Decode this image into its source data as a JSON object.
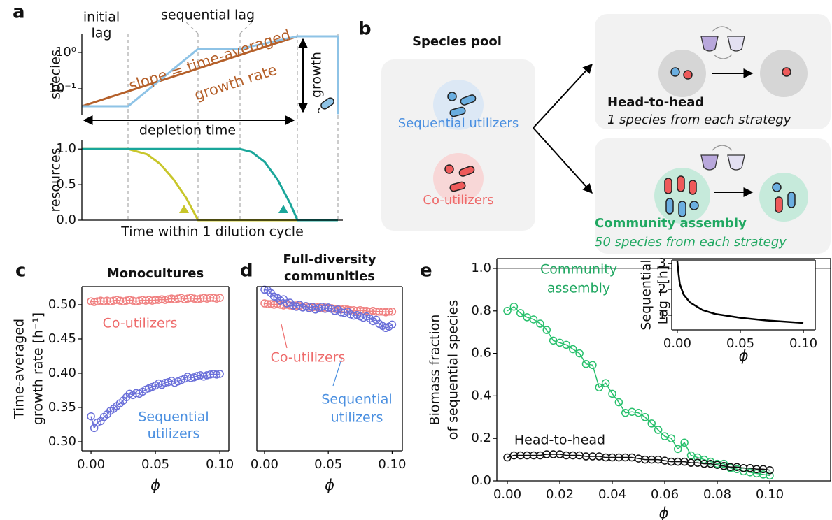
{
  "panel_labels": [
    "a",
    "b",
    "c",
    "d",
    "e"
  ],
  "diagram": {
    "pool_title": "Species pool",
    "pool": [
      "Sequential utilizers",
      "Co-utilizers"
    ],
    "head": {
      "title": "Head-to-head",
      "subtitle": "1 species from each strategy"
    },
    "community": {
      "title": "Community assembly",
      "subtitle": "50 species from each strategy"
    }
  },
  "chart_data": [
    {
      "type": "line",
      "ylabel": "species",
      "ylog": true,
      "xlim": [
        0,
        100
      ],
      "ylim": [
        0.0186,
        3.3
      ],
      "yticks": [
        {
          "value": 1,
          "label": "10⁰"
        },
        {
          "value": 0.1,
          "label": "10⁻¹"
        }
      ],
      "series": [
        {
          "color": "#b5602a",
          "x": [
            0,
            82.6
          ],
          "values": [
            0.033,
            2.77
          ]
        },
        {
          "color": "#8ec3e6",
          "x": [
            0,
            17.7,
            44.5,
            60.6,
            82.6,
            98.1,
            98.1
          ],
          "values": [
            0.033,
            0.033,
            1.25,
            1.25,
            2.77,
            2.77,
            0.02
          ]
        }
      ],
      "annotations": [
        {
          "text": [
            "initial",
            "lag"
          ]
        },
        {
          "text": "sequential lag"
        },
        {
          "text": [
            "slope = time-averaged",
            "growth rate"
          ],
          "color": "#b5602a"
        },
        {
          "text": "growth"
        },
        {
          "text": "depletion time"
        }
      ]
    },
    {
      "type": "line",
      "ylabel": "resources",
      "xlabel": "Time within 1 dilution cycle",
      "xlim": [
        0,
        100
      ],
      "ylim": [
        0,
        1.13
      ],
      "yticks": [
        {
          "value": 0,
          "label": "0.0"
        },
        {
          "value": 0.5,
          "label": "0.5"
        },
        {
          "value": 1,
          "label": "1.0"
        }
      ],
      "series": [
        {
          "color": "#c8c62a",
          "x": [
            0,
            17.7,
            25,
            30,
            35,
            40,
            44.5,
            98.1
          ],
          "values": [
            1,
            1,
            0.926,
            0.79,
            0.58,
            0.31,
            0,
            0
          ]
        },
        {
          "color": "#1aa69a",
          "x": [
            0,
            60.6,
            65,
            70,
            75,
            80,
            82.6,
            98.1
          ],
          "values": [
            1,
            1,
            0.96,
            0.82,
            0.57,
            0.22,
            0,
            0
          ]
        }
      ]
    },
    {
      "type": "line",
      "title": "Monocultures",
      "ylabel": [
        "Time-averaged",
        "growth rate [h⁻¹]"
      ],
      "xlabel": "ϕ",
      "marker": "circle",
      "xlim": [
        -0.0071,
        0.107
      ],
      "ylim": [
        0.2867,
        0.5265
      ],
      "xticks": [
        {
          "value": 0,
          "label": "0.00"
        },
        {
          "value": 0.05,
          "label": "0.05"
        },
        {
          "value": 0.1,
          "label": "0.10"
        }
      ],
      "yticks": [
        {
          "value": 0.3,
          "label": "0.30"
        },
        0.35,
        {
          "value": 0.4,
          "label": "0.40"
        },
        0.45,
        {
          "value": 0.5,
          "label": "0.50"
        }
      ],
      "x": [
        0,
        0.0025,
        0.005,
        0.0075,
        0.01,
        0.0125,
        0.015,
        0.0175,
        0.02,
        0.0225,
        0.025,
        0.0275,
        0.03,
        0.0325,
        0.035,
        0.0375,
        0.04,
        0.0425,
        0.045,
        0.0475,
        0.05,
        0.0525,
        0.055,
        0.0575,
        0.06,
        0.0625,
        0.065,
        0.0675,
        0.07,
        0.0725,
        0.075,
        0.0775,
        0.08,
        0.0825,
        0.085,
        0.0875,
        0.09,
        0.0925,
        0.095,
        0.0975,
        0.1
      ],
      "series": [
        {
          "color": "#f08080",
          "values": [
            0.505,
            0.504,
            0.505,
            0.506,
            0.505,
            0.506,
            0.505,
            0.506,
            0.507,
            0.506,
            0.505,
            0.506,
            0.507,
            0.506,
            0.505,
            0.506,
            0.507,
            0.506,
            0.507,
            0.506,
            0.507,
            0.507,
            0.508,
            0.507,
            0.508,
            0.509,
            0.508,
            0.509,
            0.51,
            0.508,
            0.509,
            0.51,
            0.509,
            0.508,
            0.509,
            0.51,
            0.509,
            0.51,
            0.51,
            0.509,
            0.51
          ]
        },
        {
          "color": "#6a6fd9",
          "values": [
            0.337,
            0.32,
            0.328,
            0.33,
            0.336,
            0.34,
            0.345,
            0.348,
            0.352,
            0.356,
            0.36,
            0.365,
            0.37,
            0.368,
            0.371,
            0.37,
            0.373,
            0.376,
            0.378,
            0.38,
            0.382,
            0.385,
            0.383,
            0.386,
            0.387,
            0.389,
            0.386,
            0.388,
            0.39,
            0.392,
            0.395,
            0.393,
            0.394,
            0.396,
            0.397,
            0.395,
            0.397,
            0.398,
            0.399,
            0.398,
            0.399
          ]
        }
      ],
      "annotations": [
        {
          "text": "Co-utilizers",
          "color": "#ee6b6b"
        },
        {
          "text": [
            "Sequential",
            "utilizers"
          ],
          "color": "#4a8fe0"
        }
      ]
    },
    {
      "type": "line",
      "title": [
        "Full-diversity",
        "communities"
      ],
      "xlabel": "ϕ",
      "marker": "circle",
      "xlim": [
        -0.006,
        0.108
      ],
      "ylim": [
        0.2867,
        0.5265
      ],
      "xticks": [
        {
          "value": 0,
          "label": "0.00"
        },
        {
          "value": 0.05,
          "label": "0.05"
        },
        {
          "value": 0.1,
          "label": "0.10"
        }
      ],
      "x": [
        0,
        0.0025,
        0.005,
        0.0075,
        0.01,
        0.0125,
        0.015,
        0.0175,
        0.02,
        0.0225,
        0.025,
        0.0275,
        0.03,
        0.0325,
        0.035,
        0.0375,
        0.04,
        0.0425,
        0.045,
        0.0475,
        0.05,
        0.0525,
        0.055,
        0.0575,
        0.06,
        0.0625,
        0.065,
        0.0675,
        0.07,
        0.0725,
        0.075,
        0.0775,
        0.08,
        0.0825,
        0.085,
        0.0875,
        0.09,
        0.0925,
        0.095,
        0.0975,
        0.1
      ],
      "series": [
        {
          "color": "#f08080",
          "values": [
            0.502,
            0.501,
            0.501,
            0.5,
            0.501,
            0.5,
            0.499,
            0.5,
            0.499,
            0.498,
            0.499,
            0.498,
            0.497,
            0.498,
            0.497,
            0.496,
            0.497,
            0.496,
            0.495,
            0.496,
            0.495,
            0.495,
            0.494,
            0.494,
            0.493,
            0.494,
            0.493,
            0.492,
            0.492,
            0.491,
            0.492,
            0.491,
            0.491,
            0.49,
            0.491,
            0.49,
            0.49,
            0.49,
            0.489,
            0.49,
            0.49
          ]
        },
        {
          "color": "#6a6fd9",
          "values": [
            0.522,
            0.521,
            0.517,
            0.512,
            0.51,
            0.506,
            0.508,
            0.502,
            0.503,
            0.499,
            0.497,
            0.5,
            0.496,
            0.498,
            0.495,
            0.497,
            0.493,
            0.495,
            0.497,
            0.494,
            0.496,
            0.494,
            0.491,
            0.493,
            0.489,
            0.488,
            0.49,
            0.486,
            0.484,
            0.485,
            0.483,
            0.481,
            0.483,
            0.48,
            0.476,
            0.478,
            0.472,
            0.469,
            0.466,
            0.468,
            0.471
          ]
        }
      ],
      "annotations": [
        {
          "text": "Co-utilizers",
          "color": "#ee6b6b"
        },
        {
          "text": [
            "Sequential",
            "utilizers"
          ],
          "color": "#4a8fe0"
        }
      ]
    },
    {
      "type": "line",
      "ylabel": [
        "Biomass fraction",
        "of sequential species"
      ],
      "xlabel": "ϕ",
      "marker": "circle",
      "hline": 1,
      "xlim": [
        -0.004,
        0.1232
      ],
      "ylim": [
        0,
        1.046
      ],
      "xticks": [
        {
          "value": 0,
          "label": "0.00"
        },
        {
          "value": 0.02,
          "label": "0.02"
        },
        {
          "value": 0.04,
          "label": "0.04"
        },
        {
          "value": 0.06,
          "label": "0.06"
        },
        {
          "value": 0.08,
          "label": "0.08"
        },
        {
          "value": 0.1,
          "label": "0.10"
        }
      ],
      "yticks": [
        {
          "value": 0,
          "label": "0.0"
        },
        0.2,
        0.4,
        0.6,
        0.8,
        {
          "value": 1,
          "label": "1.0"
        }
      ],
      "x": [
        0,
        0.0025,
        0.005,
        0.0075,
        0.01,
        0.0125,
        0.015,
        0.0175,
        0.02,
        0.0225,
        0.025,
        0.0275,
        0.03,
        0.0325,
        0.035,
        0.0375,
        0.04,
        0.0425,
        0.045,
        0.0475,
        0.05,
        0.0525,
        0.055,
        0.0575,
        0.06,
        0.0625,
        0.065,
        0.0675,
        0.07,
        0.0725,
        0.075,
        0.0775,
        0.08,
        0.0825,
        0.085,
        0.0875,
        0.09,
        0.0925,
        0.095,
        0.0975,
        0.1
      ],
      "series": [
        {
          "color": "#29c06d",
          "values": [
            0.8,
            0.82,
            0.79,
            0.77,
            0.76,
            0.74,
            0.71,
            0.66,
            0.65,
            0.64,
            0.62,
            0.6,
            0.55,
            0.545,
            0.44,
            0.46,
            0.41,
            0.37,
            0.32,
            0.325,
            0.32,
            0.3,
            0.27,
            0.24,
            0.21,
            0.2,
            0.15,
            0.18,
            0.12,
            0.11,
            0.1,
            0.09,
            0.08,
            0.08,
            0.06,
            0.055,
            0.045,
            0.04,
            0.035,
            0.03,
            0.025
          ]
        },
        {
          "color": "#111111",
          "values": [
            0.11,
            0.12,
            0.12,
            0.12,
            0.12,
            0.12,
            0.125,
            0.125,
            0.125,
            0.12,
            0.12,
            0.12,
            0.115,
            0.115,
            0.115,
            0.11,
            0.11,
            0.11,
            0.11,
            0.11,
            0.105,
            0.1,
            0.1,
            0.1,
            0.095,
            0.09,
            0.09,
            0.09,
            0.085,
            0.085,
            0.08,
            0.08,
            0.075,
            0.07,
            0.065,
            0.065,
            0.06,
            0.06,
            0.055,
            0.055,
            0.05
          ]
        }
      ],
      "annotations": [
        {
          "text": [
            "Community",
            "assembly"
          ],
          "color": "#21a862"
        },
        {
          "text": "Head-to-head"
        }
      ]
    },
    {
      "type": "line",
      "ylabel": [
        "Sequential",
        "Lag τ [h]"
      ],
      "xlabel": "ϕ",
      "xlim": [
        -0.0044,
        0.1094
      ],
      "ylim": [
        0.43,
        3.14
      ],
      "xticks": [
        {
          "value": 0,
          "label": "0.00"
        },
        {
          "value": 0.05,
          "label": "0.05"
        },
        {
          "value": 0.1,
          "label": "0.10"
        }
      ],
      "yticks": [
        1,
        2,
        3
      ],
      "series": [
        {
          "color": "#000000",
          "x": [
            0,
            0.001,
            0.002,
            0.005,
            0.01,
            0.02,
            0.03,
            0.05,
            0.07,
            0.1
          ],
          "values": [
            3.1,
            2.6,
            2.2,
            1.8,
            1.5,
            1.2,
            1.05,
            0.9,
            0.8,
            0.7
          ]
        }
      ]
    }
  ]
}
